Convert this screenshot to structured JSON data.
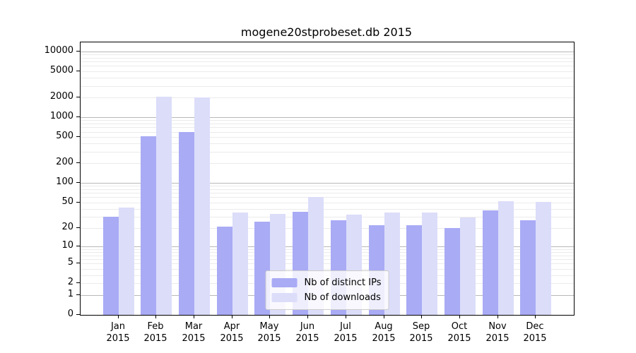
{
  "chart_data": {
    "type": "bar",
    "title": "mogene20stprobeset.db 2015",
    "categories": [
      "Jan",
      "Feb",
      "Mar",
      "Apr",
      "May",
      "Jun",
      "Jul",
      "Aug",
      "Sep",
      "Oct",
      "Nov",
      "Dec"
    ],
    "year": "2015",
    "series": [
      {
        "name": "Nb of distinct IPs",
        "color": "#a9abf5",
        "values": [
          30,
          520,
          590,
          21,
          25,
          36,
          26,
          22,
          22,
          20,
          38,
          26
        ]
      },
      {
        "name": "Nb of downloads",
        "color": "#dcddf9",
        "values": [
          42,
          2050,
          2000,
          35,
          33,
          60,
          32,
          35,
          35,
          29,
          52,
          51
        ]
      }
    ],
    "y_axis": {
      "scale": "log10(value+1)",
      "ticks": [
        10000,
        5000,
        2000,
        1000,
        500,
        200,
        100,
        50,
        20,
        10,
        5,
        2,
        1,
        0
      ],
      "major_gridlines": [
        1,
        10,
        100,
        1000,
        10000
      ],
      "minor_gridlines": [
        2,
        3,
        4,
        5,
        6,
        7,
        8,
        9,
        20,
        30,
        40,
        50,
        60,
        70,
        80,
        90,
        200,
        300,
        400,
        500,
        600,
        700,
        800,
        900,
        2000,
        3000,
        4000,
        5000,
        6000,
        7000,
        8000,
        9000
      ],
      "range": [
        0,
        13700
      ]
    },
    "legend_position": "lower center",
    "grid": true,
    "axis_color": "#000000",
    "major_grid_color": "#b8b8b8",
    "minor_grid_color": "#ebebeb"
  }
}
